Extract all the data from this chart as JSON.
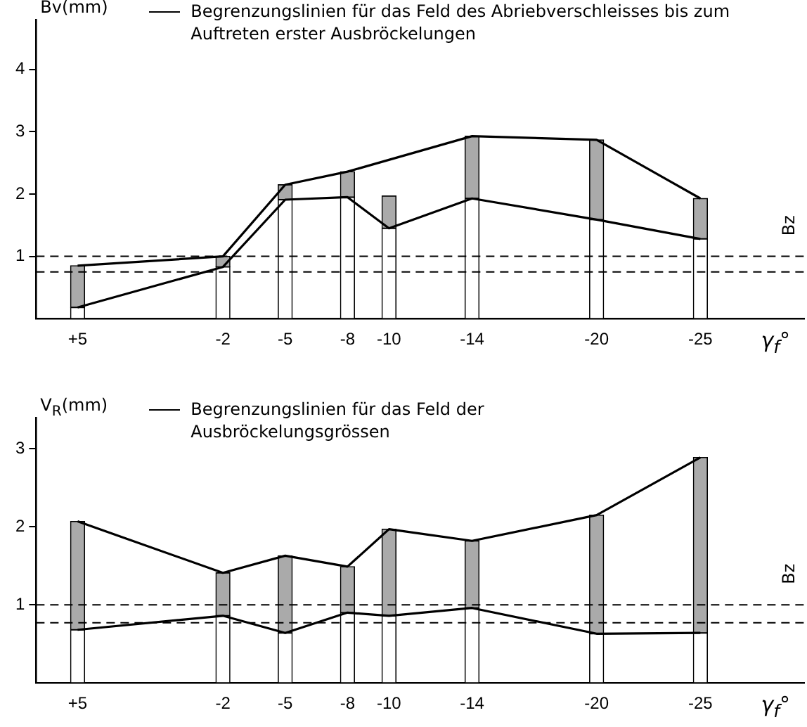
{
  "chart_data": [
    {
      "type": "bar",
      "stacked": true,
      "ylabel": "Bv(mm)",
      "xlabel": "γ$_{f}$°",
      "x": [
        5,
        -2,
        -5,
        -8,
        -10,
        -14,
        -20,
        -25
      ],
      "xlim": [
        7,
        -30
      ],
      "xticks": [
        {
          "value": 5,
          "label": "+5"
        },
        -2,
        -5,
        -8,
        -10,
        -14,
        -20,
        -25
      ],
      "ylim": [
        0,
        4.8
      ],
      "yticks": [
        1,
        2,
        3,
        4
      ],
      "legend": "top",
      "marker": "none",
      "series": [
        {
          "color": "#ffffff",
          "values": [
            0.18,
            0.83,
            1.91,
            1.95,
            1.45,
            1.93,
            1.59,
            1.28
          ]
        },
        {
          "color": "#aaaaaa",
          "values": [
            0.67,
            0.17,
            0.24,
            0.41,
            0.52,
            1.0,
            1.28,
            0.65
          ]
        },
        {
          "type": "line",
          "name": "Begrenzungslinien für das Feld des Abriebverschleisses bis zum Auftreten erster Ausbröckelungen",
          "color": "#000000",
          "x": [
            5,
            -2,
            -5,
            -8,
            -14,
            -20,
            -25
          ],
          "values": [
            0.85,
            1.0,
            2.15,
            2.36,
            2.93,
            2.87,
            1.93
          ]
        },
        {
          "type": "line",
          "color": "#000000",
          "values": [
            0.18,
            0.83,
            1.91,
            1.95,
            1.45,
            1.93,
            1.59,
            1.28
          ]
        }
      ],
      "ref_lines": [
        {
          "axis": "y",
          "value": 1,
          "line_style": "dashed"
        },
        {
          "axis": "y",
          "value": 0.75,
          "line_style": "dashed"
        }
      ],
      "annotations": [
        "Bz"
      ]
    },
    {
      "type": "bar",
      "stacked": true,
      "ylabel": "V$_{R}$(mm)",
      "xlabel": "γ$_{f}$°",
      "x": [
        5,
        -2,
        -5,
        -8,
        -10,
        -14,
        -20,
        -25
      ],
      "xlim": [
        7,
        -30
      ],
      "xticks": [
        {
          "value": 5,
          "label": "+5"
        },
        -2,
        -5,
        -8,
        -10,
        -14,
        -20,
        -25
      ],
      "ylim": [
        0,
        3.4
      ],
      "yticks": [
        1,
        2,
        3
      ],
      "legend": "top",
      "marker": "none",
      "series": [
        {
          "color": "#ffffff",
          "values": [
            0.68,
            0.86,
            0.64,
            0.9,
            0.86,
            0.96,
            0.63,
            0.64
          ]
        },
        {
          "color": "#aaaaaa",
          "values": [
            1.39,
            0.55,
            0.99,
            0.59,
            1.11,
            0.86,
            1.52,
            2.25
          ]
        },
        {
          "type": "line",
          "name": "Begrenzungslinien für das Feld der Ausbröckelungsgrössen",
          "color": "#000000",
          "values": [
            2.07,
            1.41,
            1.63,
            1.49,
            1.97,
            1.82,
            2.15,
            2.89
          ]
        },
        {
          "type": "line",
          "color": "#000000",
          "values": [
            0.68,
            0.86,
            0.64,
            0.9,
            0.86,
            0.96,
            0.63,
            0.64
          ]
        }
      ],
      "ref_lines": [
        {
          "axis": "y",
          "value": 1,
          "line_style": "dashed"
        },
        {
          "axis": "y",
          "value": 0.77,
          "line_style": "dashed"
        }
      ],
      "annotations": [
        "Bz"
      ]
    }
  ]
}
